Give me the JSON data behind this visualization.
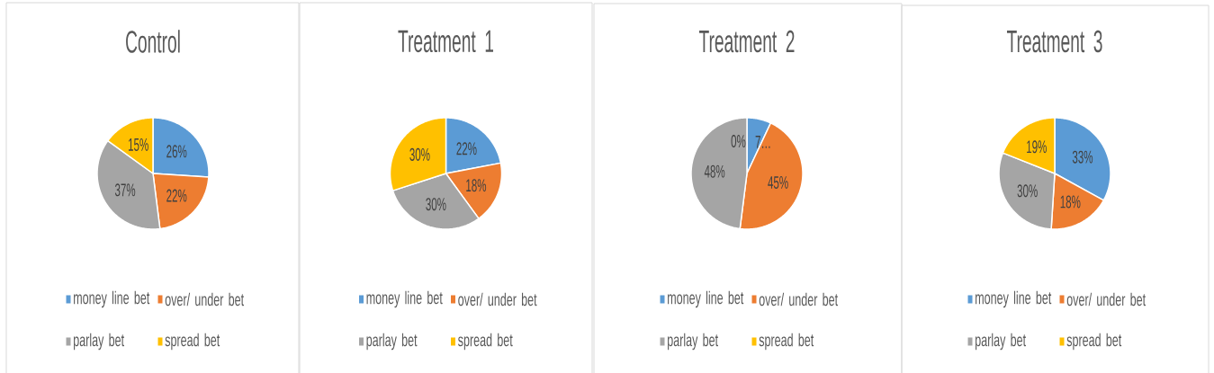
{
  "chart_data": [
    {
      "type": "pie",
      "title": "Control",
      "categories": [
        "money line bet",
        "over/ under bet",
        "parlay bet",
        "spread bet"
      ],
      "values": [
        26,
        22,
        37,
        15
      ],
      "colors": [
        "#5b9bd5",
        "#ed7d31",
        "#a5a5a5",
        "#ffc000"
      ],
      "value_labels": [
        "26%",
        "22%",
        "37%",
        "15%"
      ],
      "legend": "bottom"
    },
    {
      "type": "pie",
      "title": "Treatment 1",
      "categories": [
        "money line bet",
        "over/ under bet",
        "parlay bet",
        "spread bet"
      ],
      "values": [
        22,
        18,
        30,
        30
      ],
      "colors": [
        "#5b9bd5",
        "#ed7d31",
        "#a5a5a5",
        "#ffc000"
      ],
      "value_labels": [
        "22%",
        "18%",
        "30%",
        "30%"
      ],
      "legend": "bottom"
    },
    {
      "type": "pie",
      "title": "Treatment 2",
      "categories": [
        "money line bet",
        "over/ under bet",
        "parlay bet",
        "spread bet"
      ],
      "values": [
        7,
        45,
        48,
        0
      ],
      "colors": [
        "#5b9bd5",
        "#ed7d31",
        "#a5a5a5",
        "#ffc000"
      ],
      "value_labels": [
        "7…",
        "45%",
        "48%",
        "0%"
      ],
      "legend": "bottom"
    },
    {
      "type": "pie",
      "title": "Treatment 3",
      "categories": [
        "money line bet",
        "over/ under bet",
        "parlay bet",
        "spread bet"
      ],
      "values": [
        33,
        18,
        30,
        19
      ],
      "colors": [
        "#5b9bd5",
        "#ed7d31",
        "#a5a5a5",
        "#ffc000"
      ],
      "value_labels": [
        "33%",
        "18%",
        "30%",
        "19%"
      ],
      "legend": "bottom"
    }
  ]
}
